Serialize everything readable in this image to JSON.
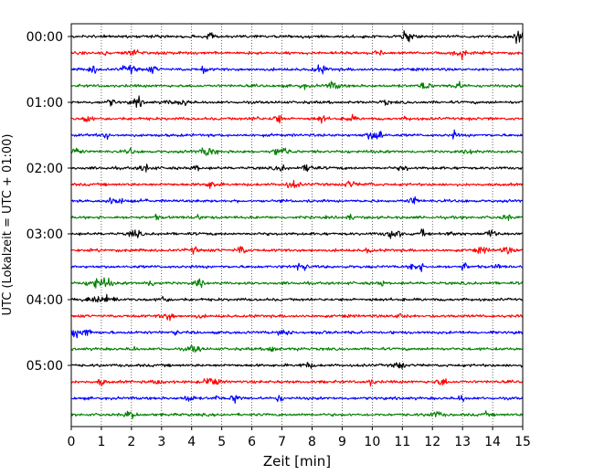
{
  "chart_data": {
    "type": "line",
    "title": "",
    "xlabel": "Zeit  [min]",
    "ylabel": "UTC (Lokalzeit = UTC + 01:00)",
    "xlim": [
      0,
      15
    ],
    "x_ticks": [
      "0",
      "1",
      "2",
      "3",
      "4",
      "5",
      "6",
      "7",
      "8",
      "9",
      "10",
      "11",
      "12",
      "13",
      "14",
      "15"
    ],
    "y_tick_labels": [
      "00:00",
      "01:00",
      "02:00",
      "03:00",
      "04:00",
      "05:00"
    ],
    "traces_per_hour": 4,
    "trace_minutes": 15,
    "grid": {
      "x": true,
      "y": false,
      "style": "dotted"
    },
    "legend": "none",
    "colors": [
      "#000000",
      "#ff0000",
      "#0000ff",
      "#008000"
    ],
    "series": [
      {
        "start": "00:00",
        "color": "#000000"
      },
      {
        "start": "00:15",
        "color": "#ff0000"
      },
      {
        "start": "00:30",
        "color": "#0000ff"
      },
      {
        "start": "00:45",
        "color": "#008000"
      },
      {
        "start": "01:00",
        "color": "#000000"
      },
      {
        "start": "01:15",
        "color": "#ff0000"
      },
      {
        "start": "01:30",
        "color": "#0000ff"
      },
      {
        "start": "01:45",
        "color": "#008000"
      },
      {
        "start": "02:00",
        "color": "#000000"
      },
      {
        "start": "02:15",
        "color": "#ff0000"
      },
      {
        "start": "02:30",
        "color": "#0000ff"
      },
      {
        "start": "02:45",
        "color": "#008000"
      },
      {
        "start": "03:00",
        "color": "#000000"
      },
      {
        "start": "03:15",
        "color": "#ff0000"
      },
      {
        "start": "03:30",
        "color": "#0000ff"
      },
      {
        "start": "03:45",
        "color": "#008000"
      },
      {
        "start": "04:00",
        "color": "#000000"
      },
      {
        "start": "04:15",
        "color": "#ff0000"
      },
      {
        "start": "04:30",
        "color": "#0000ff"
      },
      {
        "start": "04:45",
        "color": "#008000"
      },
      {
        "start": "05:00",
        "color": "#000000"
      },
      {
        "start": "05:15",
        "color": "#ff0000"
      },
      {
        "start": "05:30",
        "color": "#0000ff"
      },
      {
        "start": "05:45",
        "color": "#008000"
      }
    ]
  }
}
